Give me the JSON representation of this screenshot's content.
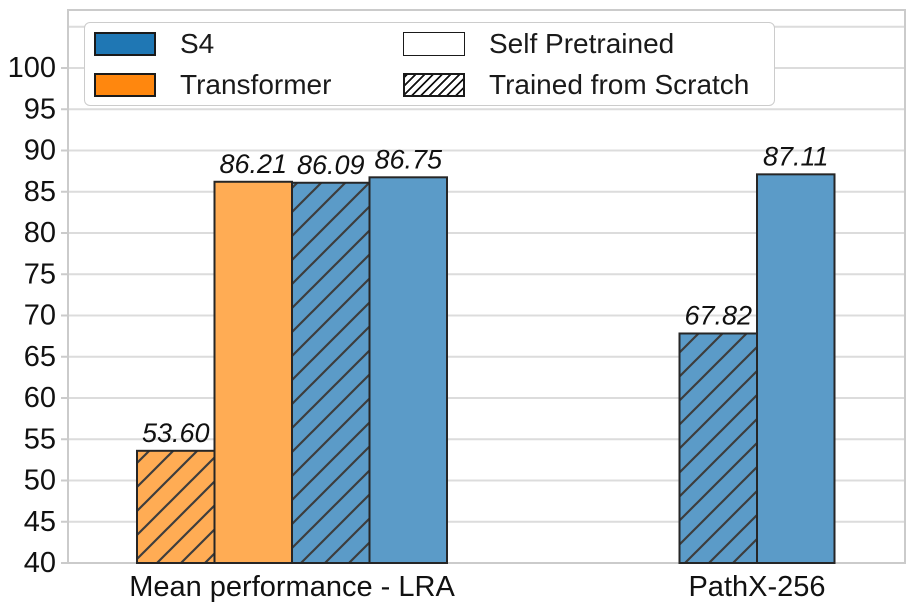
{
  "chart_data": {
    "type": "bar",
    "title": "",
    "xlabel": "",
    "ylabel": "",
    "ylim": [
      40,
      107
    ],
    "ytick_step": 5,
    "grid": true,
    "yticks": [
      40,
      45,
      50,
      55,
      60,
      65,
      70,
      75,
      80,
      85,
      90,
      95,
      100
    ],
    "ytick_labels": [
      "40",
      "45",
      "50",
      "55",
      "60",
      "65",
      "70",
      "75",
      "80",
      "85",
      "90",
      "95",
      "100"
    ],
    "categories": [
      "Mean performance - LRA",
      "PathX-256"
    ],
    "groups": [
      {
        "category": "Mean performance - LRA",
        "bars": [
          {
            "series": "Transformer",
            "variant": "Trained from Scratch",
            "value": 53.6,
            "label": "53.60"
          },
          {
            "series": "Transformer",
            "variant": "Self Pretrained",
            "value": 86.21,
            "label": "86.21"
          },
          {
            "series": "S4",
            "variant": "Trained from Scratch",
            "value": 86.09,
            "label": "86.09"
          },
          {
            "series": "S4",
            "variant": "Self Pretrained",
            "value": 86.75,
            "label": "86.75"
          }
        ]
      },
      {
        "category": "PathX-256",
        "bars": [
          {
            "series": "S4",
            "variant": "Trained from Scratch",
            "value": 67.82,
            "label": "67.82"
          },
          {
            "series": "S4",
            "variant": "Self Pretrained",
            "value": 87.11,
            "label": "87.11"
          }
        ]
      }
    ],
    "legend": [
      {
        "label": "S4",
        "swatch": "blue"
      },
      {
        "label": "Transformer",
        "swatch": "orange"
      },
      {
        "label": "Self Pretrained",
        "swatch": "white"
      },
      {
        "label": "Trained from Scratch",
        "swatch": "hatch"
      }
    ],
    "legend_position": "upper left, two columns",
    "colors": {
      "s4_bar": "#5b9bc8",
      "transformer_bar": "#ffac54",
      "s4_legend": "#1f77b4",
      "transformer_legend": "#ff870e",
      "edge": "#262626",
      "hatch": "#3d3d3d",
      "grid": "#dcdcdc",
      "frame": "#cbcbcb",
      "text": "#111111"
    }
  }
}
